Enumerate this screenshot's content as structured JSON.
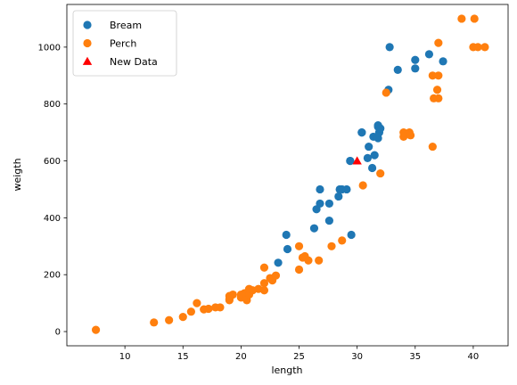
{
  "chart_data": {
    "type": "scatter",
    "title": "",
    "xlabel": "length",
    "ylabel": "weigth",
    "xlim": [
      5.0,
      43.0
    ],
    "ylim": [
      -50,
      1150
    ],
    "xticks": [
      10,
      15,
      20,
      25,
      30,
      35,
      40
    ],
    "yticks": [
      0,
      200,
      400,
      600,
      800,
      1000
    ],
    "grid": false,
    "legend": "top-left",
    "series": [
      {
        "name": "Bream",
        "marker": "circle",
        "color": "#1f77b4",
        "points": [
          [
            23.2,
            242
          ],
          [
            24.0,
            290
          ],
          [
            23.9,
            340
          ],
          [
            26.3,
            363
          ],
          [
            26.5,
            430
          ],
          [
            26.8,
            450
          ],
          [
            26.8,
            500
          ],
          [
            27.6,
            390
          ],
          [
            27.6,
            450
          ],
          [
            28.5,
            500
          ],
          [
            28.4,
            475
          ],
          [
            28.7,
            500
          ],
          [
            29.1,
            500
          ],
          [
            29.5,
            340
          ],
          [
            29.4,
            600
          ],
          [
            29.4,
            600
          ],
          [
            30.4,
            700
          ],
          [
            30.4,
            700
          ],
          [
            30.9,
            610
          ],
          [
            31.0,
            650
          ],
          [
            31.3,
            575
          ],
          [
            31.4,
            685
          ],
          [
            31.5,
            620
          ],
          [
            31.8,
            680
          ],
          [
            31.9,
            700
          ],
          [
            31.8,
            725
          ],
          [
            31.8,
            720
          ],
          [
            32.0,
            714
          ],
          [
            32.7,
            850
          ],
          [
            32.8,
            1000
          ],
          [
            33.5,
            920
          ],
          [
            35.0,
            955
          ],
          [
            35.0,
            925
          ],
          [
            36.2,
            975
          ],
          [
            37.4,
            950
          ]
        ]
      },
      {
        "name": "Perch",
        "marker": "circle",
        "color": "#ff7f0e",
        "points": [
          [
            7.5,
            5.9
          ],
          [
            12.5,
            32
          ],
          [
            13.8,
            40
          ],
          [
            15.0,
            51.5
          ],
          [
            15.7,
            70
          ],
          [
            16.2,
            100
          ],
          [
            16.8,
            78
          ],
          [
            17.2,
            80
          ],
          [
            17.8,
            85
          ],
          [
            18.2,
            85
          ],
          [
            19.0,
            110
          ],
          [
            19.0,
            115
          ],
          [
            19.0,
            125
          ],
          [
            19.3,
            130
          ],
          [
            20.0,
            120
          ],
          [
            20.0,
            120
          ],
          [
            20.0,
            130
          ],
          [
            20.3,
            135
          ],
          [
            20.5,
            110
          ],
          [
            20.7,
            130
          ],
          [
            20.7,
            150
          ],
          [
            21.0,
            145
          ],
          [
            21.5,
            150
          ],
          [
            22.0,
            170
          ],
          [
            22.0,
            225
          ],
          [
            22.0,
            145
          ],
          [
            22.5,
            188
          ],
          [
            22.7,
            180
          ],
          [
            23.0,
            197
          ],
          [
            25.0,
            218
          ],
          [
            25.0,
            300
          ],
          [
            25.3,
            260
          ],
          [
            25.5,
            265
          ],
          [
            25.8,
            250
          ],
          [
            26.7,
            250
          ],
          [
            27.8,
            300
          ],
          [
            28.7,
            320
          ],
          [
            30.5,
            514
          ],
          [
            32.0,
            556
          ],
          [
            32.5,
            840
          ],
          [
            34.0,
            685
          ],
          [
            34.0,
            700
          ],
          [
            34.5,
            700
          ],
          [
            34.6,
            690
          ],
          [
            36.5,
            900
          ],
          [
            36.5,
            650
          ],
          [
            36.6,
            820
          ],
          [
            36.9,
            850
          ],
          [
            37.0,
            900
          ],
          [
            37.0,
            1015
          ],
          [
            37.0,
            820
          ],
          [
            39.0,
            1100
          ],
          [
            40.0,
            1000
          ],
          [
            40.1,
            1100
          ],
          [
            40.4,
            1000
          ],
          [
            41.0,
            1000
          ]
        ]
      },
      {
        "name": "New Data",
        "marker": "triangle",
        "color": "#ff0000",
        "points": [
          [
            30.0,
            600
          ]
        ]
      }
    ]
  }
}
